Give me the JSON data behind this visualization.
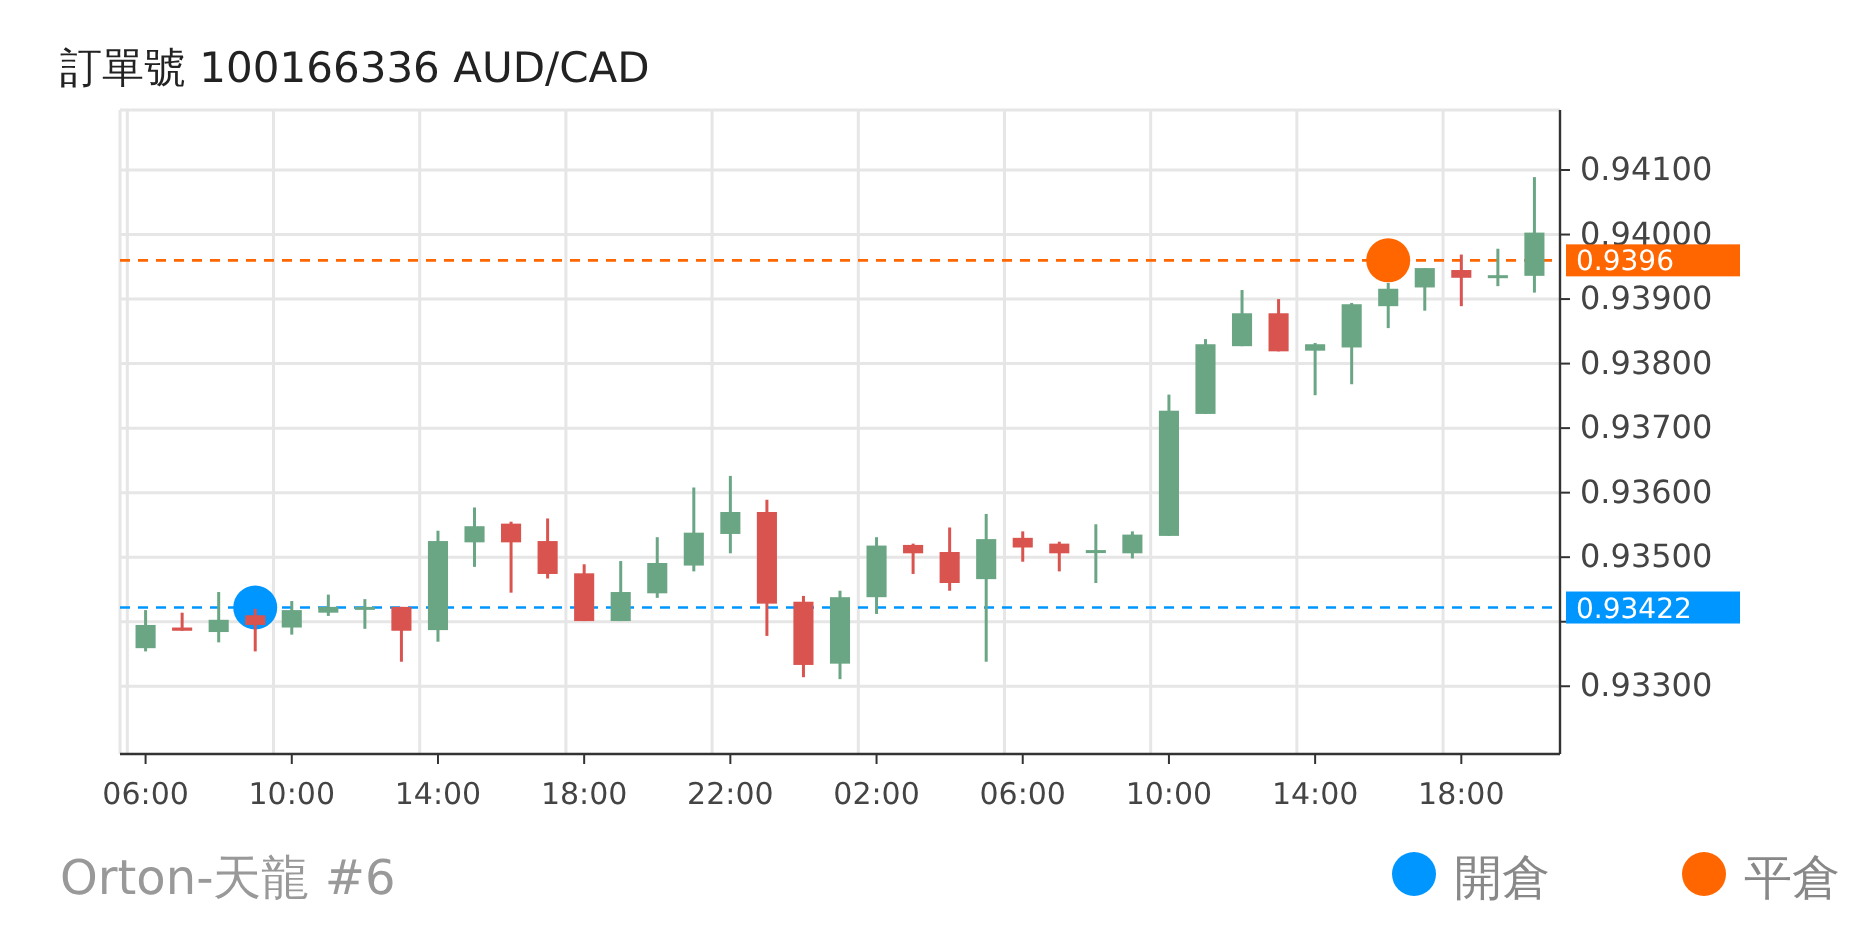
{
  "chart_data": {
    "type": "candlestick",
    "title": "訂單號 100166336    AUD/CAD",
    "categories": [
      "06:00",
      null,
      null,
      null,
      "10:00",
      null,
      null,
      null,
      "14:00",
      null,
      null,
      null,
      "18:00",
      null,
      null,
      null,
      "22:00",
      null,
      null,
      null,
      "02:00",
      null,
      null,
      null,
      "06:00",
      null,
      null,
      null,
      "10:00",
      null,
      null,
      null,
      "14:00",
      null,
      null,
      null,
      "18:00",
      null,
      null
    ],
    "ohlc": [
      [
        0.93359,
        0.93418,
        0.93354,
        0.93395
      ],
      [
        0.93391,
        0.93414,
        0.93386,
        0.93386
      ],
      [
        0.93384,
        0.93446,
        0.93368,
        0.93403
      ],
      [
        0.9341,
        0.9342,
        0.93354,
        0.93395
      ],
      [
        0.93391,
        0.93432,
        0.9338,
        0.93418
      ],
      [
        0.93414,
        0.93442,
        0.93409,
        0.93423
      ],
      [
        0.9342,
        0.93435,
        0.93389,
        0.93423
      ],
      [
        0.93423,
        0.93423,
        0.93338,
        0.93386
      ],
      [
        0.93387,
        0.93541,
        0.93369,
        0.93525
      ],
      [
        0.93523,
        0.93577,
        0.93485,
        0.93548
      ],
      [
        0.93552,
        0.93555,
        0.93445,
        0.93523
      ],
      [
        0.93525,
        0.9356,
        0.93467,
        0.93474
      ],
      [
        0.93475,
        0.93489,
        0.93401,
        0.93401
      ],
      [
        0.93401,
        0.93494,
        0.93401,
        0.93446
      ],
      [
        0.93444,
        0.93531,
        0.93437,
        0.93491
      ],
      [
        0.93487,
        0.93608,
        0.93478,
        0.93538
      ],
      [
        0.93536,
        0.93626,
        0.93506,
        0.9357
      ],
      [
        0.9357,
        0.93589,
        0.93378,
        0.93428
      ],
      [
        0.93431,
        0.9344,
        0.93314,
        0.93333
      ],
      [
        0.93335,
        0.93448,
        0.93311,
        0.93438
      ],
      [
        0.93438,
        0.93531,
        0.93412,
        0.93518
      ],
      [
        0.93519,
        0.93521,
        0.93474,
        0.93506
      ],
      [
        0.93508,
        0.93546,
        0.93448,
        0.9346
      ],
      [
        0.93466,
        0.93567,
        0.93338,
        0.93528
      ],
      [
        0.9353,
        0.9354,
        0.93493,
        0.93515
      ],
      [
        0.93521,
        0.93524,
        0.93478,
        0.93506
      ],
      [
        0.93508,
        0.93551,
        0.9346,
        0.93511
      ],
      [
        0.93506,
        0.9354,
        0.93498,
        0.93535
      ],
      [
        0.93533,
        0.93752,
        0.93533,
        0.93727
      ],
      [
        0.93722,
        0.93838,
        0.93722,
        0.9383
      ],
      [
        0.93827,
        0.93914,
        0.93827,
        0.93878
      ],
      [
        0.93878,
        0.939,
        0.93819,
        0.93819
      ],
      [
        0.9382,
        0.93832,
        0.93751,
        0.9383
      ],
      [
        0.93825,
        0.93894,
        0.93768,
        0.93892
      ],
      [
        0.93889,
        0.93925,
        0.93855,
        0.93916
      ],
      [
        0.93918,
        0.93948,
        0.93882,
        0.93948
      ],
      [
        0.93945,
        0.93969,
        0.93889,
        0.93933
      ],
      [
        0.93934,
        0.93978,
        0.9392,
        0.93937
      ],
      [
        0.93936,
        0.94089,
        0.9391,
        0.94003
      ]
    ],
    "colors": [
      "#6aa684",
      "#d9534f",
      "#6aa684",
      "#d9534f",
      "#6aa684",
      "#6aa684",
      "#6aa684",
      "#d9534f",
      "#6aa684",
      "#6aa684",
      "#d9534f",
      "#d9534f",
      "#d9534f",
      "#6aa684",
      "#6aa684",
      "#6aa684",
      "#6aa684",
      "#d9534f",
      "#d9534f",
      "#6aa684",
      "#6aa684",
      "#d9534f",
      "#d9534f",
      "#6aa684",
      "#d9534f",
      "#d9534f",
      "#6aa684",
      "#6aa684",
      "#6aa684",
      "#6aa684",
      "#6aa684",
      "#d9534f",
      "#6aa684",
      "#6aa684",
      "#6aa684",
      "#6aa684",
      "#d9534f",
      "#6aa684",
      "#6aa684"
    ],
    "series": [
      {
        "type": "scatter",
        "name": "開倉",
        "color": "#0096ff",
        "values": [
          null,
          null,
          null,
          0.93422,
          null,
          null,
          null,
          null,
          null,
          null,
          null,
          null,
          null,
          null,
          null,
          null,
          null,
          null,
          null,
          null,
          null,
          null,
          null,
          null,
          null,
          null,
          null,
          null,
          null,
          null,
          null,
          null,
          null,
          null,
          null,
          null,
          null,
          null,
          null
        ]
      },
      {
        "type": "scatter",
        "name": "平倉",
        "color": "#ff6600",
        "values": [
          null,
          null,
          null,
          null,
          null,
          null,
          null,
          null,
          null,
          null,
          null,
          null,
          null,
          null,
          null,
          null,
          null,
          null,
          null,
          null,
          null,
          null,
          null,
          null,
          null,
          null,
          null,
          null,
          null,
          null,
          null,
          null,
          null,
          null,
          0.9396,
          null,
          null,
          null,
          null
        ]
      }
    ],
    "ylim": [
      0.93195,
      0.94193
    ],
    "yticks": [
      {
        "value": 0.933,
        "label": "0.93300"
      },
      {
        "value": 0.934,
        "label": null
      },
      {
        "value": 0.935,
        "label": "0.93500"
      },
      {
        "value": 0.936,
        "label": "0.93600"
      },
      {
        "value": 0.937,
        "label": "0.93700"
      },
      {
        "value": 0.938,
        "label": "0.93800"
      },
      {
        "value": 0.939,
        "label": "0.93900"
      },
      {
        "value": 0.94,
        "label": "0.94000"
      },
      {
        "value": 0.941,
        "label": "0.94100"
      }
    ],
    "ref_lines": [
      {
        "axis": "y",
        "value": 0.93422,
        "label": "0.93422",
        "color": "#0096ff",
        "line_style": "dashed"
      },
      {
        "axis": "y",
        "value": 0.9396,
        "label": "0.9396",
        "color": "#ff6600",
        "line_style": "dashed"
      }
    ],
    "grid": true,
    "marker": "circle",
    "legend": "bottom right",
    "annotations": [
      "Orton-天龍 #6"
    ]
  }
}
